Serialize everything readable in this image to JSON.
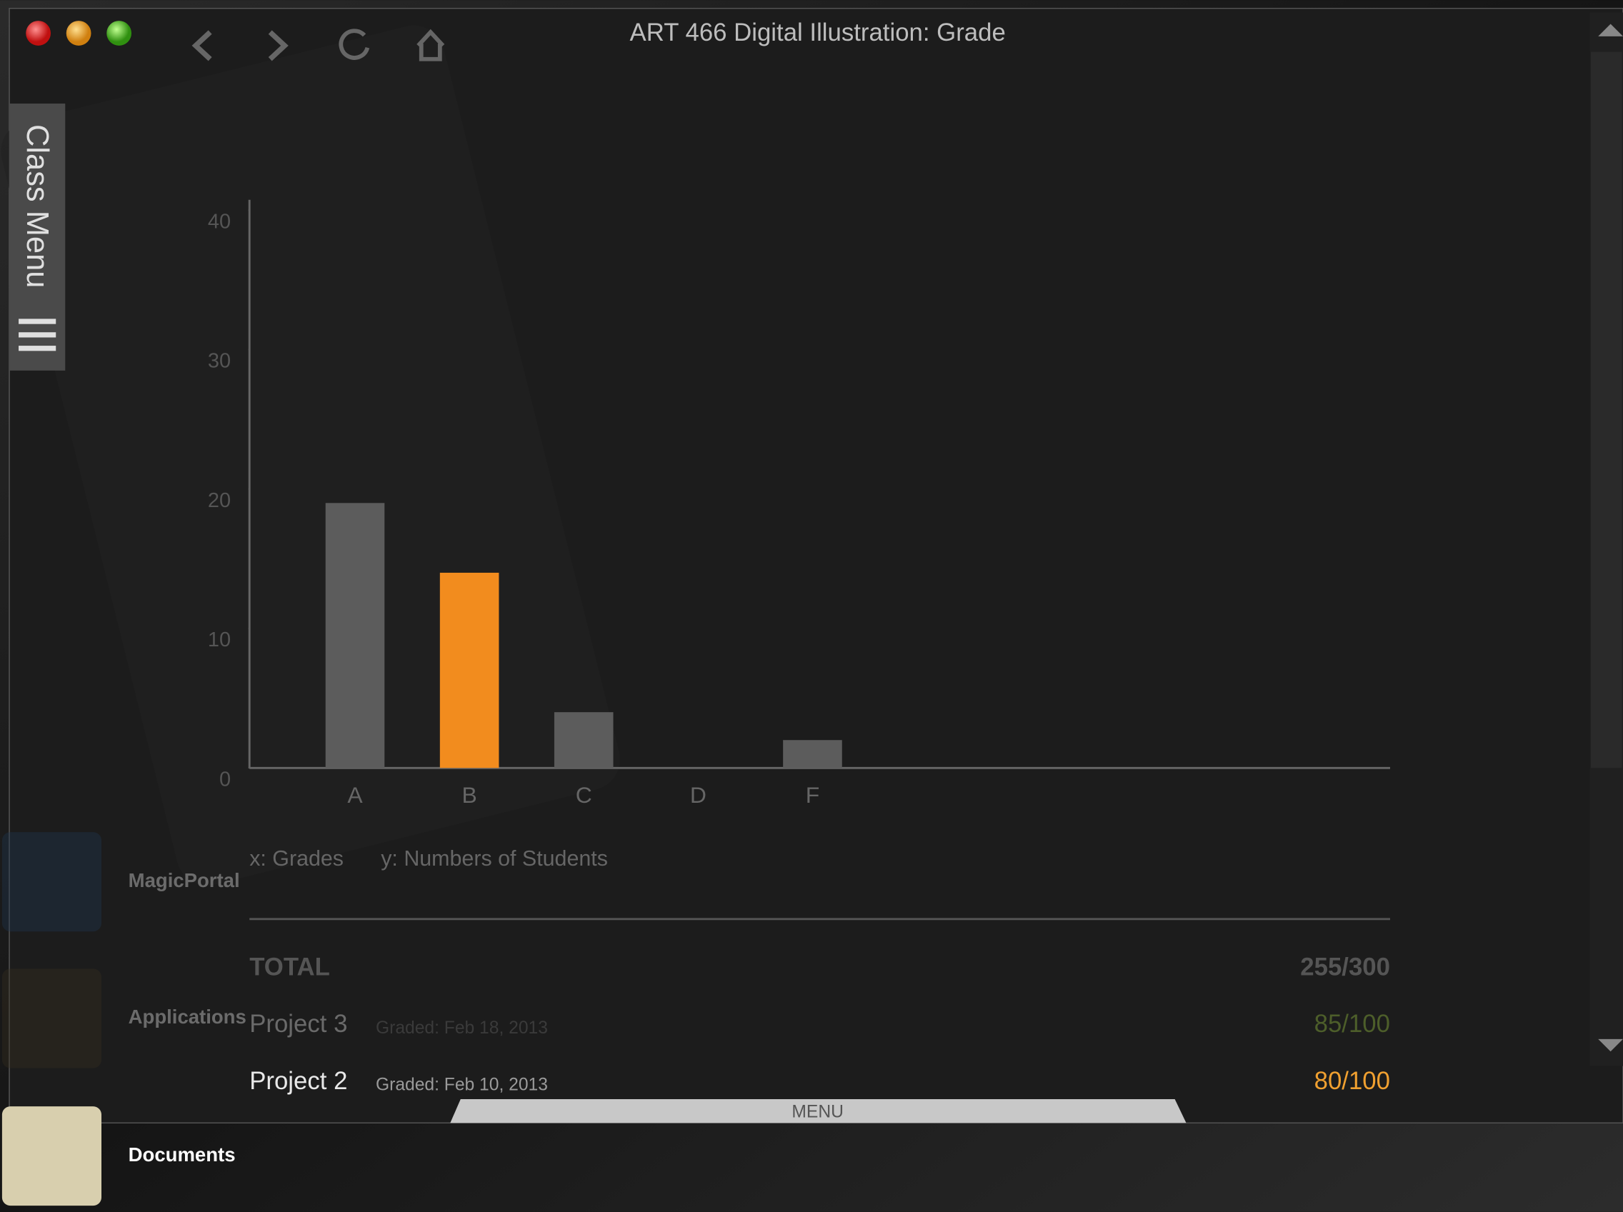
{
  "window": {
    "title": "ART 466 Digital Illustration: Grade",
    "side_tab": "Class Menu",
    "bottom_tab": "MENU"
  },
  "desktop": {
    "icons": [
      "MagicPortal",
      "Applications",
      "Documents"
    ]
  },
  "chart_data": {
    "type": "bar",
    "categories": [
      "A",
      "B",
      "C",
      "D",
      "F"
    ],
    "values": [
      19,
      14,
      4,
      0,
      2
    ],
    "colors": [
      "#5c5c5c",
      "#f28c1e",
      "#5c5c5c",
      "#5c5c5c",
      "#5c5c5c"
    ],
    "ylim": [
      0,
      40
    ],
    "yticks": [
      0,
      10,
      20,
      30,
      40
    ],
    "x_label": "x: Grades",
    "y_label": "y: Numbers of Students"
  },
  "grades": {
    "total": {
      "label": "TOTAL",
      "score": "255/300"
    },
    "items": [
      {
        "name": "Project 3",
        "graded": "Graded: Feb 18, 2013",
        "score": "85/100",
        "color": "#4d5e2a",
        "text_color": "#6a6a6a",
        "sub_color": "#3a3a3a"
      },
      {
        "name": "Project 2",
        "graded": "Graded: Feb 10, 2013",
        "score": "80/100",
        "color": "#f0a030",
        "text_color": "#e8e8e8",
        "sub_color": "#9a9a9a"
      }
    ]
  }
}
